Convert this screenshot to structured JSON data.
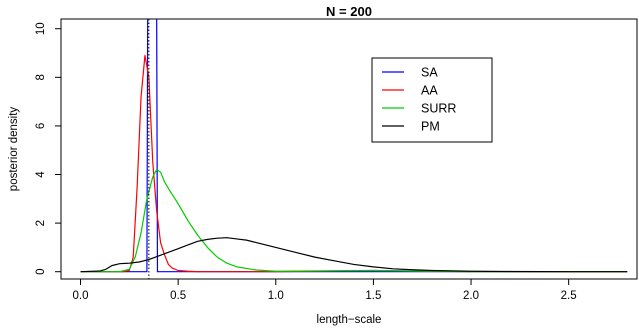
{
  "chart_data": {
    "type": "line",
    "title": "N = 200",
    "xlabel": "length−scale",
    "ylabel": "posterior density",
    "xlim": [
      -0.1,
      2.85
    ],
    "ylim": [
      -0.3,
      10.4
    ],
    "xticks": [
      0.0,
      0.5,
      1.0,
      1.5,
      2.0,
      2.5
    ],
    "xtick_labels": [
      "0.0",
      "0.5",
      "1.0",
      "1.5",
      "2.0",
      "2.5"
    ],
    "yticks": [
      0,
      2,
      4,
      6,
      8,
      10
    ],
    "ytick_labels": [
      "0",
      "2",
      "4",
      "6",
      "8",
      "10"
    ],
    "legend_position": "top-right",
    "grid": false,
    "reference_line": {
      "x": 0.35,
      "style": "dotted",
      "color": "#000000"
    },
    "series": [
      {
        "name": "SA",
        "color": "#0000ff",
        "x": [
          0.0,
          0.34,
          0.344,
          0.39,
          0.394,
          2.8
        ],
        "y": [
          0.0,
          0.0,
          10.6,
          10.6,
          0.0,
          0.0
        ]
      },
      {
        "name": "AA",
        "color": "#ff0000",
        "x": [
          0.0,
          0.22,
          0.25,
          0.27,
          0.29,
          0.31,
          0.33,
          0.35,
          0.37,
          0.39,
          0.41,
          0.43,
          0.45,
          0.47,
          0.5,
          0.55,
          0.6,
          1.0,
          1.5,
          2.0,
          2.8
        ],
        "y": [
          0.0,
          0.0,
          0.05,
          0.6,
          3.5,
          7.2,
          8.9,
          8.0,
          4.5,
          2.5,
          1.2,
          0.7,
          0.3,
          0.15,
          0.05,
          0.02,
          0.0,
          0.0,
          0.05,
          0.0,
          0.0
        ]
      },
      {
        "name": "SURR",
        "color": "#00cc00",
        "x": [
          0.0,
          0.2,
          0.25,
          0.28,
          0.31,
          0.34,
          0.37,
          0.39,
          0.41,
          0.43,
          0.46,
          0.5,
          0.55,
          0.6,
          0.65,
          0.7,
          0.75,
          0.8,
          0.9,
          1.0,
          1.5,
          2.0,
          2.8
        ],
        "y": [
          0.0,
          0.0,
          0.1,
          0.6,
          1.6,
          3.0,
          3.9,
          4.2,
          4.1,
          3.7,
          3.3,
          2.8,
          2.1,
          1.5,
          1.0,
          0.6,
          0.35,
          0.2,
          0.07,
          0.02,
          0.05,
          0.0,
          0.0
        ]
      },
      {
        "name": "PM",
        "color": "#000000",
        "x": [
          0.0,
          0.1,
          0.13,
          0.16,
          0.2,
          0.25,
          0.3,
          0.35,
          0.4,
          0.45,
          0.5,
          0.55,
          0.6,
          0.65,
          0.7,
          0.75,
          0.8,
          0.85,
          0.9,
          1.0,
          1.1,
          1.2,
          1.3,
          1.4,
          1.5,
          1.6,
          1.7,
          1.8,
          2.0,
          2.2,
          2.5,
          2.8
        ],
        "y": [
          0.0,
          0.03,
          0.1,
          0.25,
          0.33,
          0.35,
          0.4,
          0.5,
          0.65,
          0.8,
          0.95,
          1.1,
          1.25,
          1.33,
          1.38,
          1.4,
          1.35,
          1.3,
          1.2,
          1.0,
          0.8,
          0.6,
          0.45,
          0.3,
          0.2,
          0.12,
          0.08,
          0.05,
          0.02,
          0.01,
          0.0,
          0.0
        ]
      }
    ]
  }
}
